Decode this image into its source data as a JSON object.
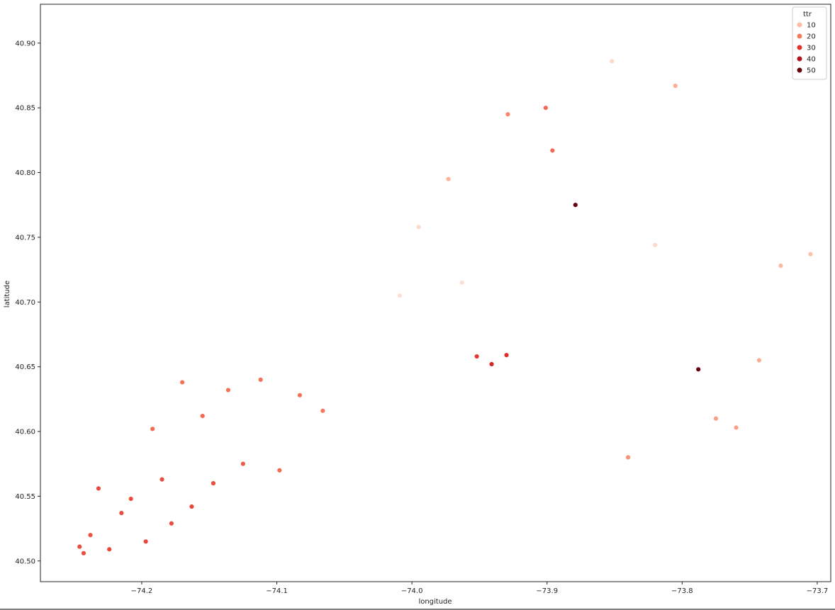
{
  "chart_data": {
    "type": "scatter",
    "title": "",
    "xlabel": "longitude",
    "ylabel": "latitude",
    "xlim": [
      -74.275,
      -73.69
    ],
    "ylim": [
      40.484,
      40.93
    ],
    "xticks": [
      -74.2,
      -74.1,
      -74.0,
      -73.9,
      -73.8,
      -73.7
    ],
    "xtick_labels": [
      "−74.2",
      "−74.1",
      "−74.0",
      "−73.9",
      "−73.8",
      "−73.7"
    ],
    "yticks": [
      40.5,
      40.55,
      40.6,
      40.65,
      40.7,
      40.75,
      40.8,
      40.85,
      40.9
    ],
    "ytick_labels": [
      "40.50",
      "40.55",
      "40.60",
      "40.65",
      "40.70",
      "40.75",
      "40.80",
      "40.85",
      "40.90"
    ],
    "hue": "ttr",
    "legend": {
      "title": "ttr",
      "placement": "top-right",
      "entries": [
        {
          "label": "10",
          "color": "#fcbba1"
        },
        {
          "label": "20",
          "color": "#f6795c"
        },
        {
          "label": "30",
          "color": "#e2312b"
        },
        {
          "label": "40",
          "color": "#b01319"
        },
        {
          "label": "50",
          "color": "#67000d"
        }
      ]
    },
    "points": [
      {
        "x": -74.246,
        "y": 40.511,
        "ttr": 26
      },
      {
        "x": -74.243,
        "y": 40.506,
        "ttr": 26
      },
      {
        "x": -74.238,
        "y": 40.52,
        "ttr": 25
      },
      {
        "x": -74.232,
        "y": 40.556,
        "ttr": 27
      },
      {
        "x": -74.224,
        "y": 40.509,
        "ttr": 27
      },
      {
        "x": -74.215,
        "y": 40.537,
        "ttr": 26
      },
      {
        "x": -74.208,
        "y": 40.548,
        "ttr": 26
      },
      {
        "x": -74.197,
        "y": 40.515,
        "ttr": 27
      },
      {
        "x": -74.192,
        "y": 40.602,
        "ttr": 22
      },
      {
        "x": -74.185,
        "y": 40.563,
        "ttr": 26
      },
      {
        "x": -74.178,
        "y": 40.529,
        "ttr": 26
      },
      {
        "x": -74.17,
        "y": 40.638,
        "ttr": 21
      },
      {
        "x": -74.163,
        "y": 40.542,
        "ttr": 27
      },
      {
        "x": -74.155,
        "y": 40.612,
        "ttr": 22
      },
      {
        "x": -74.147,
        "y": 40.56,
        "ttr": 26
      },
      {
        "x": -74.136,
        "y": 40.632,
        "ttr": 21
      },
      {
        "x": -74.125,
        "y": 40.575,
        "ttr": 24
      },
      {
        "x": -74.112,
        "y": 40.64,
        "ttr": 21
      },
      {
        "x": -74.098,
        "y": 40.57,
        "ttr": 22
      },
      {
        "x": -74.083,
        "y": 40.628,
        "ttr": 21
      },
      {
        "x": -74.066,
        "y": 40.616,
        "ttr": 20
      },
      {
        "x": -74.009,
        "y": 40.705,
        "ttr": 5
      },
      {
        "x": -73.995,
        "y": 40.758,
        "ttr": 6
      },
      {
        "x": -73.973,
        "y": 40.795,
        "ttr": 11
      },
      {
        "x": -73.963,
        "y": 40.715,
        "ttr": 5
      },
      {
        "x": -73.952,
        "y": 40.658,
        "ttr": 29
      },
      {
        "x": -73.941,
        "y": 40.652,
        "ttr": 33
      },
      {
        "x": -73.93,
        "y": 40.659,
        "ttr": 31
      },
      {
        "x": -73.929,
        "y": 40.845,
        "ttr": 18
      },
      {
        "x": -73.901,
        "y": 40.85,
        "ttr": 22
      },
      {
        "x": -73.896,
        "y": 40.817,
        "ttr": 22
      },
      {
        "x": -73.879,
        "y": 40.775,
        "ttr": 50
      },
      {
        "x": -73.852,
        "y": 40.886,
        "ttr": 6
      },
      {
        "x": -73.84,
        "y": 40.58,
        "ttr": 16
      },
      {
        "x": -73.82,
        "y": 40.744,
        "ttr": 6
      },
      {
        "x": -73.805,
        "y": 40.867,
        "ttr": 12
      },
      {
        "x": -73.788,
        "y": 40.648,
        "ttr": 50
      },
      {
        "x": -73.775,
        "y": 40.61,
        "ttr": 14
      },
      {
        "x": -73.76,
        "y": 40.603,
        "ttr": 14
      },
      {
        "x": -73.743,
        "y": 40.655,
        "ttr": 12
      },
      {
        "x": -73.727,
        "y": 40.728,
        "ttr": 10
      },
      {
        "x": -73.705,
        "y": 40.737,
        "ttr": 9
      }
    ]
  }
}
